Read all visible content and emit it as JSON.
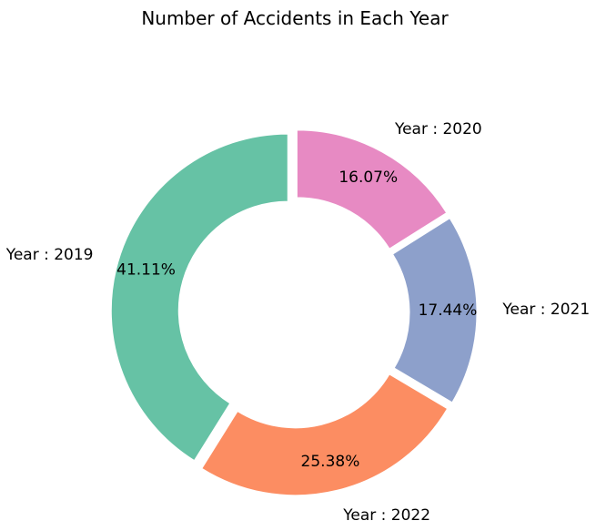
{
  "chart_data": {
    "type": "pie",
    "title": "Number of Accidents in Each Year",
    "donut": true,
    "legend": "none",
    "slices": [
      {
        "label": "Year : 2019",
        "value": 41.11,
        "pct_text": "41.11%",
        "color": "#66c2a5"
      },
      {
        "label": "Year : 2022",
        "value": 25.38,
        "pct_text": "25.38%",
        "color": "#fc8d62"
      },
      {
        "label": "Year : 2021",
        "value": 17.44,
        "pct_text": "17.44%",
        "color": "#8da0cb"
      },
      {
        "label": "Year : 2020",
        "value": 16.07,
        "pct_text": "16.07%",
        "color": "#e78ac3"
      }
    ]
  }
}
